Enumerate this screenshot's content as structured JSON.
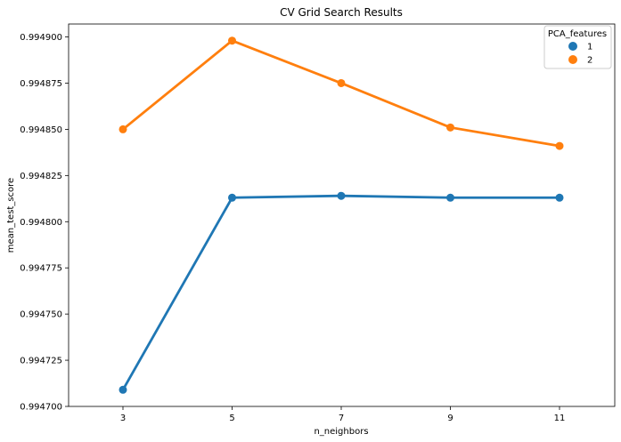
{
  "chart_data": {
    "type": "line",
    "title": "CV Grid Search Results",
    "xlabel": "n_neighbors",
    "ylabel": "mean_test_score",
    "categories": [
      "3",
      "5",
      "7",
      "9",
      "11"
    ],
    "ylim": [
      0.9947,
      0.994907
    ],
    "yticks": [
      "0.994700",
      "0.994725",
      "0.994750",
      "0.994775",
      "0.994800",
      "0.994825",
      "0.994850",
      "0.994875",
      "0.994900"
    ],
    "legend": {
      "title": "PCA_features",
      "position": "top-right"
    },
    "grid": false,
    "series": [
      {
        "name": "1",
        "color": "#1f77b4",
        "values": [
          0.994709,
          0.994813,
          0.994814,
          0.994813,
          0.994813
        ]
      },
      {
        "name": "2",
        "color": "#ff7f0e",
        "values": [
          0.99485,
          0.994898,
          0.994875,
          0.994851,
          0.994841
        ]
      }
    ]
  }
}
